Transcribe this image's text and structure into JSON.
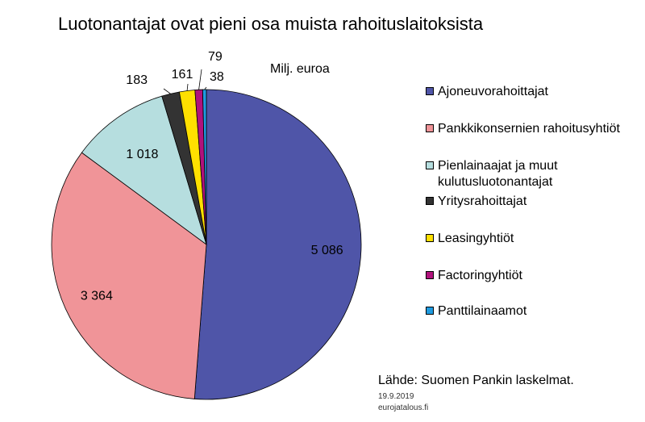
{
  "chart_data": {
    "type": "pie",
    "title": "Luotonantajat ovat pieni osa muista rahoituslaitoksista",
    "unit": "Milj. euroa",
    "slices": [
      {
        "label": "Ajoneuvorahoittajat",
        "value": 5086,
        "value_text": "5 086",
        "color": "#4F55A8"
      },
      {
        "label": "Pankkikonsernien rahoitusyhtiöt",
        "value": 3364,
        "value_text": "3 364",
        "color": "#F09498"
      },
      {
        "label": "Pienlainaajat ja muut kulutusluotonantajat",
        "value": 1018,
        "value_text": "1 018",
        "color": "#B6DEDF"
      },
      {
        "label": "Yritysrahoittajat",
        "value": 183,
        "value_text": "183",
        "color": "#333333"
      },
      {
        "label": "Leasingyhtiöt",
        "value": 161,
        "value_text": "161",
        "color": "#FFE000"
      },
      {
        "label": "Factoringyhtiöt",
        "value": 79,
        "value_text": "79",
        "color": "#B0127C"
      },
      {
        "label": "Panttilainaamot",
        "value": 38,
        "value_text": "38",
        "color": "#1F9BE0"
      }
    ],
    "legend_position": "right",
    "source": "Lähde: Suomen Pankin laskelmat.",
    "date": "19.9.2019",
    "site": "eurojatalous.fi"
  }
}
